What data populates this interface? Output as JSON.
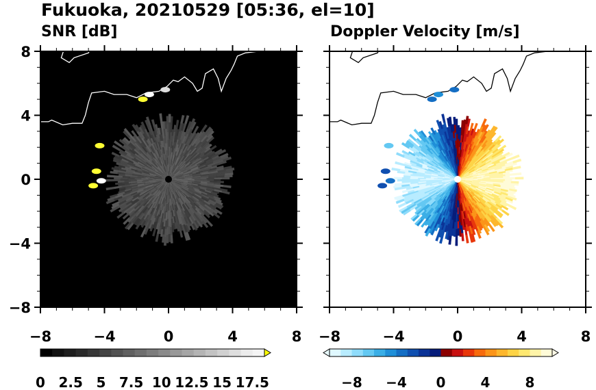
{
  "figure": {
    "title": "Fukuoka, 20210529 [05:36, el=10]"
  },
  "colors": {
    "snr_background": "#000000",
    "vel_background": "#ffffff",
    "coastline": "#000000",
    "snr_coastline": "#ffffff",
    "radar_site_snr": "#000000",
    "radar_site_vel": "#ffffff"
  },
  "chart_data": [
    {
      "type": "heatmap",
      "title": "SNR [dB]",
      "xlabel": "",
      "ylabel": "",
      "xlim": [
        -8,
        8
      ],
      "ylim": [
        -8,
        8
      ],
      "x_ticks": [
        "−8",
        "−4",
        "0",
        "4",
        "8"
      ],
      "y_ticks": [
        "8",
        "4",
        "0",
        "−4",
        "−8"
      ],
      "grid": false,
      "radar_echo_radius": 3.8,
      "colorbar": {
        "orientation": "horizontal",
        "range": [
          0,
          18.5
        ],
        "extend": "max",
        "tick_labels": [
          "0",
          "2.5",
          "5",
          "7.5",
          "10",
          "12.5",
          "15",
          "17.5"
        ],
        "colors": [
          "#000000",
          "#111111",
          "#1e1e1e",
          "#2a2a2a",
          "#373737",
          "#444444",
          "#525252",
          "#606060",
          "#6e6e6e",
          "#7c7c7c",
          "#8a8a8a",
          "#989898",
          "#a6a6a6",
          "#b4b4b4",
          "#c2c2c2",
          "#d0d0d0",
          "#dedede",
          "#ececec",
          "#f4f4f4"
        ],
        "over_color": "#ffff00"
      },
      "echo_patches": [
        {
          "x": -1.6,
          "y": 5.0,
          "color": "#ffff33"
        },
        {
          "x": -1.2,
          "y": 5.3,
          "color": "#ffffff"
        },
        {
          "x": -0.2,
          "y": 5.6,
          "color": "#dddddd"
        },
        {
          "x": -4.3,
          "y": 2.1,
          "color": "#ffff33"
        },
        {
          "x": -4.5,
          "y": 0.5,
          "color": "#ffff33"
        },
        {
          "x": -4.7,
          "y": -0.4,
          "color": "#ffff33"
        },
        {
          "x": -4.2,
          "y": -0.1,
          "color": "#ffffff"
        }
      ]
    },
    {
      "type": "heatmap",
      "title": "Doppler Velocity [m/s]",
      "xlabel": "",
      "ylabel": "",
      "xlim": [
        -8,
        8
      ],
      "ylim": [
        -8,
        8
      ],
      "x_ticks": [
        "−8",
        "−4",
        "0",
        "4",
        "8"
      ],
      "y_ticks": [],
      "grid": false,
      "radar_echo_radius": 3.8,
      "colorbar": {
        "orientation": "horizontal",
        "range": [
          -10,
          10
        ],
        "extend": "both",
        "tick_labels": [
          "−8",
          "−4",
          "0",
          "4",
          "8"
        ],
        "colors": [
          "#e0f8ff",
          "#b8ecff",
          "#8fdcfb",
          "#63c8f2",
          "#3aaee6",
          "#1f8fd8",
          "#146ec4",
          "#0f4fb0",
          "#0a3296",
          "#061c7a",
          "#8b0000",
          "#c81010",
          "#e8360a",
          "#f76a0c",
          "#fb9418",
          "#fdb62c",
          "#fdd345",
          "#fee870",
          "#fff4a8",
          "#fffbd8"
        ],
        "under_color": "#e8fbff",
        "over_color": "#fffbe8"
      }
    }
  ]
}
